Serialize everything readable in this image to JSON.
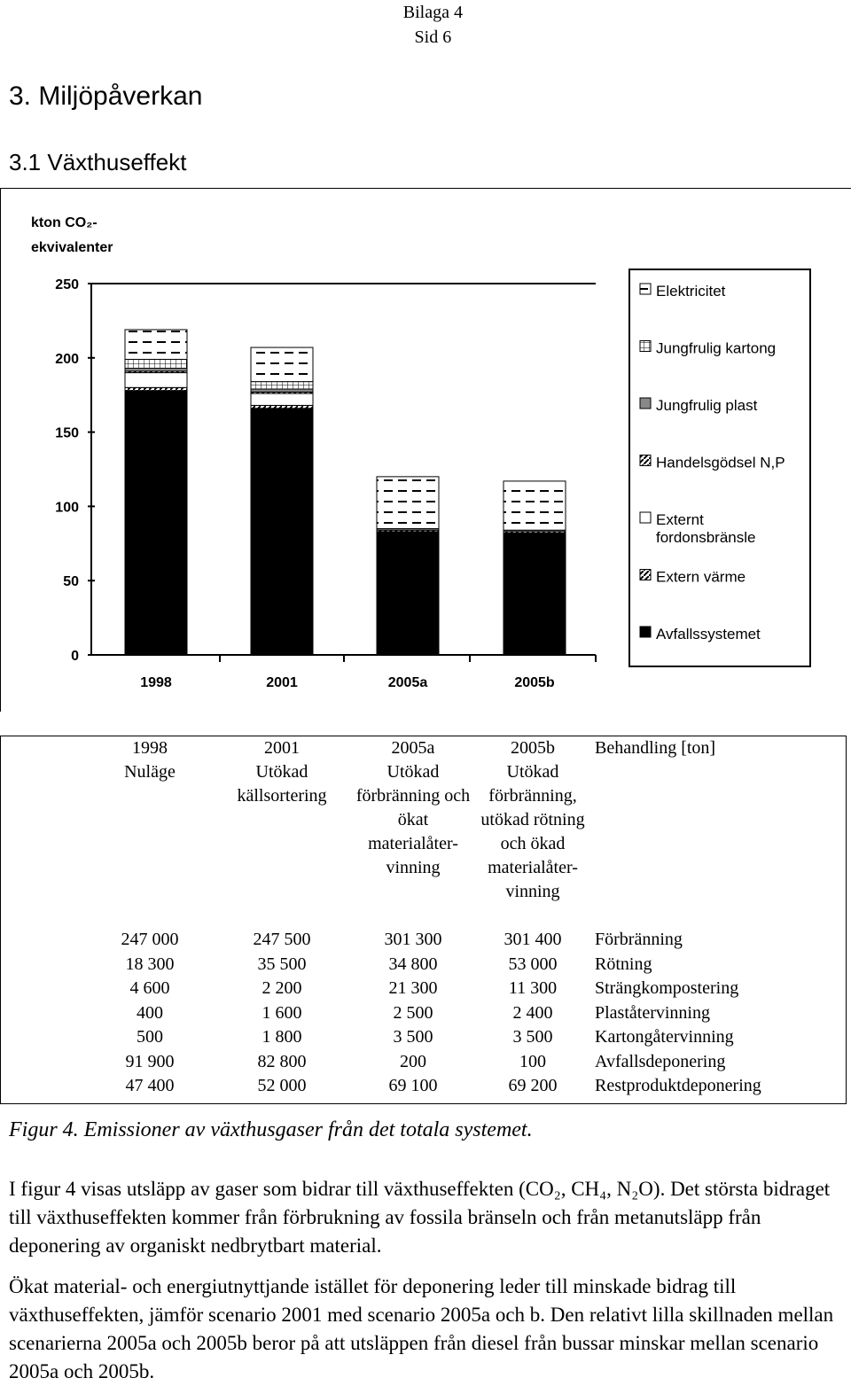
{
  "header": {
    "appendix": "Bilaga 4",
    "page": "Sid 6"
  },
  "section_title": "3.  Miljöpåverkan",
  "subsection_title": "3.1 Växthuseffekt",
  "chart_data": {
    "type": "bar",
    "stacked": true,
    "ylabel": "kton CO2-ekvivalenter",
    "ylim": [
      0,
      250
    ],
    "yticks": [
      0,
      50,
      100,
      150,
      200,
      250
    ],
    "categories": [
      "1998",
      "2001",
      "2005a",
      "2005b"
    ],
    "legend_position": "right",
    "series": [
      {
        "name": "Avfallssystemet",
        "values": [
          178,
          166,
          83,
          82
        ]
      },
      {
        "name": "Extern värme",
        "values": [
          2,
          2,
          1,
          1
        ]
      },
      {
        "name": "Externt fordonsbränsle",
        "values": [
          10,
          8,
          0,
          0
        ]
      },
      {
        "name": "Handelsgödsel N,P",
        "values": [
          1,
          1,
          0,
          0
        ]
      },
      {
        "name": "Jungfrulig plast",
        "values": [
          2,
          2,
          1,
          1
        ]
      },
      {
        "name": "Jungfrulig kartong",
        "values": [
          6,
          5,
          0,
          0
        ]
      },
      {
        "name": "Elektricitet",
        "values": [
          20,
          23,
          35,
          33
        ]
      }
    ],
    "legend_labels": [
      "Elektricitet",
      "Jungfrulig kartong",
      "Jungfrulig plast",
      "Handelsgödsel N,P",
      "Externt fordonsbränsle",
      "Extern värme",
      "Avfallssystemet"
    ]
  },
  "table": {
    "scenarios": [
      {
        "year": "1998",
        "title": "Nuläge",
        "values": [
          "247 000",
          "18 300",
          "4 600",
          "400",
          "500",
          "91 900",
          "47 400"
        ]
      },
      {
        "year": "2001",
        "title": "Utökad källsortering",
        "values": [
          "247 500",
          "35 500",
          "2 200",
          "1 600",
          "1 800",
          "82 800",
          "52 000"
        ]
      },
      {
        "year": "2005a",
        "title": "Utökad förbränning och ökat materialåter-vinning",
        "values": [
          "301 300",
          "34 800",
          "21 300",
          "2 500",
          "3 500",
          "200",
          "69 100"
        ]
      },
      {
        "year": "2005b",
        "title": "Utökad förbränning, utökad rötning och ökad materialåter-vinning",
        "values": [
          "301 400",
          "53 000",
          "11 300",
          "2 400",
          "3 500",
          "100",
          "69 200"
        ]
      }
    ],
    "treatment_header": "Behandling [ton]",
    "treatments": [
      "Förbränning",
      "Rötning",
      "Strängkompostering",
      "Plaståtervinning",
      "Kartongåtervinning",
      "Avfallsdeponering",
      "Restproduktdeponering"
    ]
  },
  "figure_caption": "Figur 4. Emissioner av växthusgaser från det totala systemet.",
  "paragraph1": "I figur 4 visas utsläpp av gaser som bidrar till växthuseffekten (CO₂, CH₄, N₂O). Det största bidraget till växthuseffekten kommer från förbrukning av fossila bränseln och från metanutsläpp från deponering av organiskt nedbrytbart material.",
  "paragraph2": "Ökat material- och energiutnyttjande istället för deponering leder till minskade bidrag till växthuseffekten, jämför scenario 2001 med scenario 2005a och b. Den relativt lilla skillnaden mellan scenarierna 2005a och 2005b beror på att utsläppen från diesel från bussar minskar mellan scenario 2005a och 2005b."
}
